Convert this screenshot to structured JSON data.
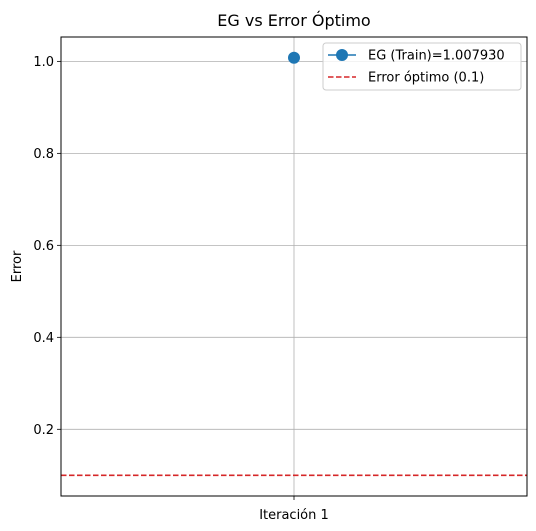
{
  "chart_data": {
    "type": "line",
    "title": "EG vs Error Óptimo",
    "xlabel": "",
    "ylabel": "Error",
    "categories": [
      "Iteración 1"
    ],
    "ylim": [
      0.055,
      1.053
    ],
    "yticks": [
      0.2,
      0.4,
      0.6,
      0.8,
      1.0
    ],
    "ytick_labels": [
      "0.2",
      "0.4",
      "0.6",
      "0.8",
      "1.0"
    ],
    "grid": true,
    "legend_position": "top-right",
    "series": [
      {
        "name": "EG (Train)=1.007930",
        "values": [
          1.00793
        ],
        "color": "#1f77b4",
        "marker": "circle",
        "line_style": "solid"
      }
    ],
    "reference_lines": [
      {
        "name": "Error óptimo (0.1)",
        "y": 0.1,
        "color": "#d62728",
        "line_style": "dashed"
      }
    ]
  }
}
